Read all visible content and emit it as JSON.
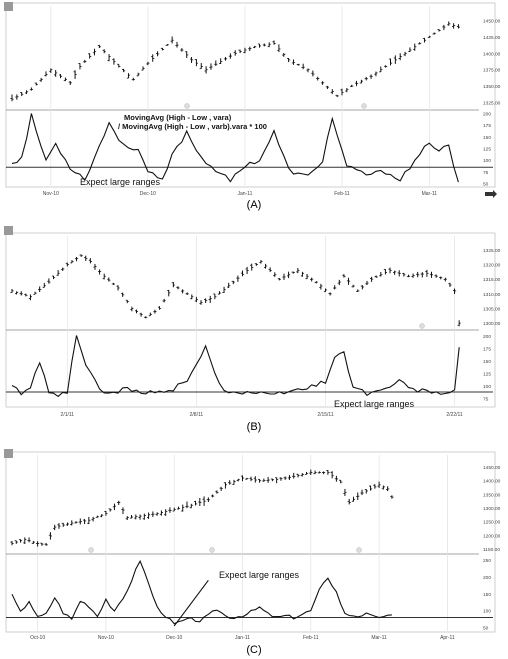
{
  "chart_data": [
    {
      "type": "line",
      "caption": "(A)",
      "top_title": "",
      "price_ticks": [
        "1450.00",
        "1425.00",
        "1400.00",
        "1375.00",
        "1350.00",
        "1325.00"
      ],
      "price_range": [
        1315,
        1460
      ],
      "ind_ticks": [
        "200",
        "175",
        "150",
        "125",
        "100",
        "75",
        "50"
      ],
      "ind_range": [
        45,
        205
      ],
      "x_ticks": [
        {
          "label": "Nov-10",
          "i": 8
        },
        {
          "label": "Dec-10",
          "i": 28
        },
        {
          "label": "Jan-11",
          "i": 48
        },
        {
          "label": "Feb-11",
          "i": 68
        },
        {
          "label": "Mar-11",
          "i": 86
        }
      ],
      "annotations": [
        {
          "text": "MovingAvg (High - Low , vara)",
          "bold": true
        },
        {
          "text": "/ MovingAvg (High - Low , varb).vara * 100",
          "bold": true
        },
        {
          "text": "Expect large ranges",
          "bold": false
        }
      ],
      "reference_line": 85,
      "n": 93,
      "price_keys": [
        [
          0,
          1330
        ],
        [
          4,
          1345
        ],
        [
          8,
          1375
        ],
        [
          12,
          1355
        ],
        [
          14,
          1380
        ],
        [
          18,
          1410
        ],
        [
          22,
          1380
        ],
        [
          25,
          1360
        ],
        [
          28,
          1385
        ],
        [
          33,
          1420
        ],
        [
          37,
          1390
        ],
        [
          40,
          1375
        ],
        [
          46,
          1400
        ],
        [
          50,
          1410
        ],
        [
          54,
          1415
        ],
        [
          57,
          1390
        ],
        [
          61,
          1375
        ],
        [
          64,
          1355
        ],
        [
          67,
          1335
        ],
        [
          70,
          1350
        ],
        [
          74,
          1365
        ],
        [
          78,
          1385
        ],
        [
          83,
          1410
        ],
        [
          87,
          1430
        ],
        [
          90,
          1445
        ],
        [
          92,
          1440
        ]
      ],
      "ind_keys": [
        [
          0,
          95
        ],
        [
          2,
          105
        ],
        [
          4,
          195
        ],
        [
          6,
          130
        ],
        [
          7,
          100
        ],
        [
          9,
          135
        ],
        [
          12,
          85
        ],
        [
          15,
          60
        ],
        [
          17,
          105
        ],
        [
          20,
          180
        ],
        [
          23,
          130
        ],
        [
          26,
          125
        ],
        [
          28,
          75
        ],
        [
          31,
          55
        ],
        [
          33,
          110
        ],
        [
          36,
          160
        ],
        [
          39,
          105
        ],
        [
          42,
          80
        ],
        [
          45,
          55
        ],
        [
          48,
          90
        ],
        [
          51,
          100
        ],
        [
          54,
          160
        ],
        [
          57,
          80
        ],
        [
          59,
          70
        ],
        [
          61,
          65
        ],
        [
          64,
          100
        ],
        [
          66,
          190
        ],
        [
          69,
          85
        ],
        [
          73,
          70
        ],
        [
          77,
          75
        ],
        [
          80,
          60
        ],
        [
          83,
          95
        ],
        [
          86,
          140
        ],
        [
          88,
          120
        ],
        [
          90,
          130
        ],
        [
          92,
          50
        ]
      ]
    },
    {
      "type": "line",
      "caption": "(B)",
      "top_title": "",
      "price_ticks": [
        "1325.00",
        "1320.00",
        "1315.00",
        "1310.00",
        "1305.00",
        "1300.00"
      ],
      "price_range": [
        1298,
        1327
      ],
      "ind_ticks": [
        "200",
        "175",
        "150",
        "125",
        "100",
        "75"
      ],
      "ind_range": [
        60,
        210
      ],
      "x_ticks": [
        {
          "label": "2/1/11",
          "i": 12
        },
        {
          "label": "2/8/11",
          "i": 40
        },
        {
          "label": "2/15/11",
          "i": 68
        },
        {
          "label": "2/22/11",
          "i": 96
        }
      ],
      "annotations": [
        {
          "text": "Expect large ranges",
          "bold": false
        }
      ],
      "reference_line": 88,
      "n": 98,
      "price_keys": [
        [
          0,
          1311
        ],
        [
          4,
          1309
        ],
        [
          8,
          1314
        ],
        [
          12,
          1320
        ],
        [
          15,
          1323
        ],
        [
          17,
          1321
        ],
        [
          20,
          1316
        ],
        [
          23,
          1312
        ],
        [
          26,
          1305
        ],
        [
          29,
          1302
        ],
        [
          32,
          1305
        ],
        [
          35,
          1313
        ],
        [
          38,
          1310
        ],
        [
          41,
          1307
        ],
        [
          44,
          1309
        ],
        [
          48,
          1314
        ],
        [
          51,
          1318
        ],
        [
          54,
          1321
        ],
        [
          58,
          1315
        ],
        [
          62,
          1318
        ],
        [
          66,
          1314
        ],
        [
          69,
          1310
        ],
        [
          72,
          1316
        ],
        [
          75,
          1311
        ],
        [
          78,
          1315
        ],
        [
          82,
          1318
        ],
        [
          86,
          1316
        ],
        [
          90,
          1317
        ],
        [
          94,
          1315
        ],
        [
          96,
          1311
        ],
        [
          97,
          1300
        ]
      ],
      "ind_keys": [
        [
          0,
          100
        ],
        [
          2,
          85
        ],
        [
          4,
          95
        ],
        [
          6,
          150
        ],
        [
          8,
          90
        ],
        [
          10,
          82
        ],
        [
          12,
          90
        ],
        [
          14,
          200
        ],
        [
          16,
          145
        ],
        [
          18,
          110
        ],
        [
          20,
          82
        ],
        [
          22,
          85
        ],
        [
          24,
          95
        ],
        [
          26,
          90
        ],
        [
          29,
          85
        ],
        [
          32,
          90
        ],
        [
          35,
          95
        ],
        [
          38,
          110
        ],
        [
          40,
          140
        ],
        [
          42,
          185
        ],
        [
          44,
          125
        ],
        [
          46,
          92
        ],
        [
          49,
          85
        ],
        [
          52,
          88
        ],
        [
          56,
          80
        ],
        [
          60,
          90
        ],
        [
          64,
          95
        ],
        [
          68,
          110
        ],
        [
          70,
          160
        ],
        [
          72,
          165
        ],
        [
          74,
          100
        ],
        [
          77,
          85
        ],
        [
          80,
          90
        ],
        [
          84,
          110
        ],
        [
          86,
          95
        ],
        [
          89,
          90
        ],
        [
          92,
          88
        ],
        [
          95,
          82
        ],
        [
          96,
          90
        ],
        [
          97,
          175
        ]
      ]
    },
    {
      "type": "line",
      "caption": "(C)",
      "top_title": "",
      "price_ticks": [
        "1450.00",
        "1400.00",
        "1350.00",
        "1300.00",
        "1250.00",
        "1200.00",
        "1150.00"
      ],
      "price_range": [
        1135,
        1465
      ],
      "ind_ticks": [
        "250",
        "200",
        "150",
        "100",
        "50"
      ],
      "ind_range": [
        40,
        265
      ],
      "x_ticks": [
        {
          "label": "Oct-10",
          "i": 6
        },
        {
          "label": "Nov-10",
          "i": 22
        },
        {
          "label": "Dec-10",
          "i": 38
        },
        {
          "label": "Jan-11",
          "i": 54
        },
        {
          "label": "Feb-11",
          "i": 70
        },
        {
          "label": "Mar-11",
          "i": 86
        },
        {
          "label": "Apr-11",
          "i": 102
        }
      ],
      "annotations": [
        {
          "text": "Expect large ranges",
          "bold": false
        }
      ],
      "reference_line": 80,
      "n": 90,
      "price_keys": [
        [
          0,
          1170
        ],
        [
          3,
          1185
        ],
        [
          6,
          1170
        ],
        [
          8,
          1165
        ],
        [
          10,
          1230
        ],
        [
          14,
          1245
        ],
        [
          18,
          1255
        ],
        [
          22,
          1280
        ],
        [
          25,
          1320
        ],
        [
          27,
          1265
        ],
        [
          30,
          1270
        ],
        [
          34,
          1280
        ],
        [
          38,
          1295
        ],
        [
          42,
          1310
        ],
        [
          46,
          1330
        ],
        [
          50,
          1385
        ],
        [
          54,
          1410
        ],
        [
          58,
          1400
        ],
        [
          62,
          1405
        ],
        [
          66,
          1415
        ],
        [
          70,
          1430
        ],
        [
          74,
          1430
        ],
        [
          77,
          1395
        ],
        [
          79,
          1320
        ],
        [
          82,
          1355
        ],
        [
          86,
          1385
        ],
        [
          88,
          1370
        ],
        [
          89,
          1340
        ]
      ],
      "ind_keys": [
        [
          0,
          145
        ],
        [
          2,
          95
        ],
        [
          4,
          130
        ],
        [
          6,
          80
        ],
        [
          8,
          90
        ],
        [
          10,
          140
        ],
        [
          12,
          95
        ],
        [
          14,
          75
        ],
        [
          16,
          130
        ],
        [
          18,
          115
        ],
        [
          20,
          85
        ],
        [
          22,
          135
        ],
        [
          24,
          95
        ],
        [
          26,
          135
        ],
        [
          28,
          190
        ],
        [
          30,
          250
        ],
        [
          32,
          180
        ],
        [
          34,
          110
        ],
        [
          36,
          85
        ],
        [
          38,
          60
        ],
        [
          40,
          70
        ],
        [
          42,
          75
        ],
        [
          44,
          70
        ],
        [
          46,
          85
        ],
        [
          48,
          105
        ],
        [
          50,
          85
        ],
        [
          52,
          80
        ],
        [
          55,
          90
        ],
        [
          58,
          110
        ],
        [
          60,
          90
        ],
        [
          62,
          80
        ],
        [
          64,
          85
        ],
        [
          66,
          80
        ],
        [
          68,
          90
        ],
        [
          70,
          100
        ],
        [
          72,
          160
        ],
        [
          74,
          200
        ],
        [
          76,
          155
        ],
        [
          78,
          90
        ],
        [
          81,
          85
        ],
        [
          83,
          90
        ],
        [
          85,
          80
        ],
        [
          87,
          85
        ]
      ],
      "extra_segment": [
        [
          38,
          55
        ],
        [
          46,
          190
        ]
      ]
    }
  ]
}
